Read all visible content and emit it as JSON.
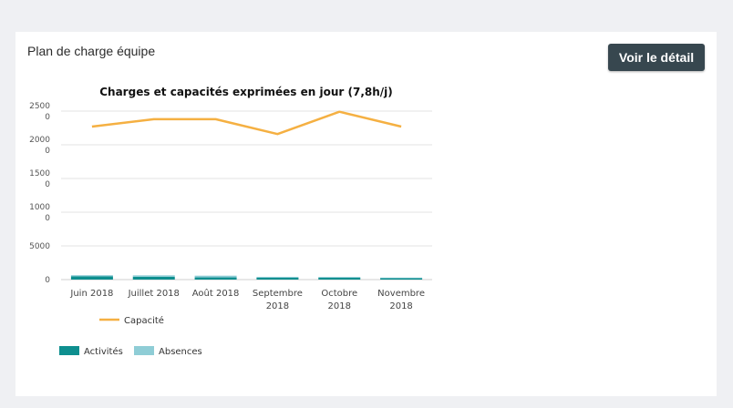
{
  "card": {
    "title": "Plan de charge équipe",
    "detail_button": "Voir le détail"
  },
  "colors": {
    "page_bg": "#eff0f3",
    "button_bg": "#37474f",
    "capacity": "#f5b042",
    "activities": "#0e8f8f",
    "absences": "#8fcdd6"
  },
  "chart_data": {
    "type": "bar",
    "title": "Charges et capacités exprimées en jour (7,8h/j)",
    "categories": [
      [
        "Juin 2018"
      ],
      [
        "Juillet 2018"
      ],
      [
        "Août 2018"
      ],
      [
        "Septembre",
        "2018"
      ],
      [
        "Octobre",
        "2018"
      ],
      [
        "Novembre",
        "2018"
      ]
    ],
    "y_tick_labels": [
      [
        "0"
      ],
      [
        "5000"
      ],
      [
        "1000",
        "0"
      ],
      [
        "1500",
        "0"
      ],
      [
        "2000",
        "0"
      ],
      [
        "2500",
        "0"
      ]
    ],
    "ylim": [
      0,
      25000
    ],
    "grid": true,
    "series": [
      {
        "name": "Activités",
        "kind": "bar-stacked",
        "color": "#0e8f8f",
        "values": [
          500,
          420,
          330,
          270,
          280,
          200
        ]
      },
      {
        "name": "Absences",
        "kind": "bar-stacked",
        "color": "#8fcdd6",
        "values": [
          150,
          210,
          250,
          140,
          120,
          90
        ]
      },
      {
        "name": "Capacité",
        "kind": "line",
        "color": "#f5b042",
        "values": [
          22700,
          23800,
          23800,
          21600,
          24900,
          22700
        ]
      }
    ],
    "legend_placement": "bottom-left"
  }
}
